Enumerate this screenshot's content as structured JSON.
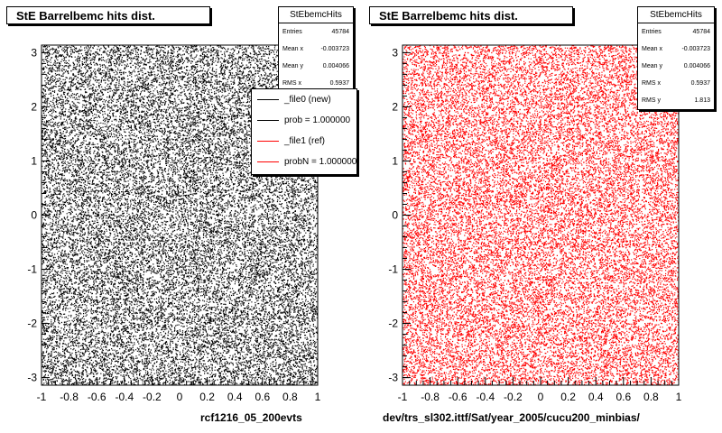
{
  "chart_data": [
    {
      "type": "scatter",
      "title": "StE Barrelbemc hits dist.",
      "xlabel": "rcf1216_05_200evts",
      "ylabel": "",
      "xlim": [
        -1,
        1
      ],
      "ylim": [
        -3.14,
        3.14
      ],
      "xticks": [
        "-1",
        "-0.8",
        "-0.6",
        "-0.4",
        "-0.2",
        "0",
        "0.2",
        "0.4",
        "0.6",
        "0.8",
        "1"
      ],
      "yticks": [
        "-3",
        "-2",
        "-1",
        "0",
        "1",
        "2",
        "3"
      ],
      "marker_color": "#000000",
      "distribution": "uniform",
      "stats": {
        "title": "StEbemcHits",
        "rows": [
          {
            "label": "Entries",
            "value": "45784"
          },
          {
            "label": "Mean x",
            "value": "-0.003723"
          },
          {
            "label": "Mean y",
            "value": "0.004066"
          },
          {
            "label": "RMS x",
            "value": "0.5937"
          }
        ]
      },
      "legend": {
        "placement": "top-right",
        "entries": [
          {
            "label": "_file0 (new)",
            "color": "#000000"
          },
          {
            "label": "prob = 1.000000",
            "color": "#000000"
          },
          {
            "label": "_file1 (ref)",
            "color": "#ff0000"
          },
          {
            "label": "probN = 1.000000",
            "color": "#ff0000"
          }
        ]
      }
    },
    {
      "type": "scatter",
      "title": "StE Barrelbemc hits dist.",
      "xlabel": "dev/trs_sl302.ittf/Sat/year_2005/cucu200_minbias/",
      "ylabel": "",
      "xlim": [
        -1,
        1
      ],
      "ylim": [
        -3.14,
        3.14
      ],
      "xticks": [
        "-1",
        "-0.8",
        "-0.6",
        "-0.4",
        "-0.2",
        "0",
        "0.2",
        "0.4",
        "0.6",
        "0.8",
        "1"
      ],
      "yticks": [
        "-3",
        "-2",
        "-1",
        "0",
        "1",
        "2",
        "3"
      ],
      "marker_color": "#ff0000",
      "distribution": "uniform",
      "stats": {
        "title": "StEbemcHits",
        "rows": [
          {
            "label": "Entries",
            "value": "45784"
          },
          {
            "label": "Mean x",
            "value": "-0.003723"
          },
          {
            "label": "Mean y",
            "value": "0.004066"
          },
          {
            "label": "RMS x",
            "value": "0.5937"
          },
          {
            "label": "RMS y",
            "value": "1.813"
          }
        ]
      }
    }
  ]
}
